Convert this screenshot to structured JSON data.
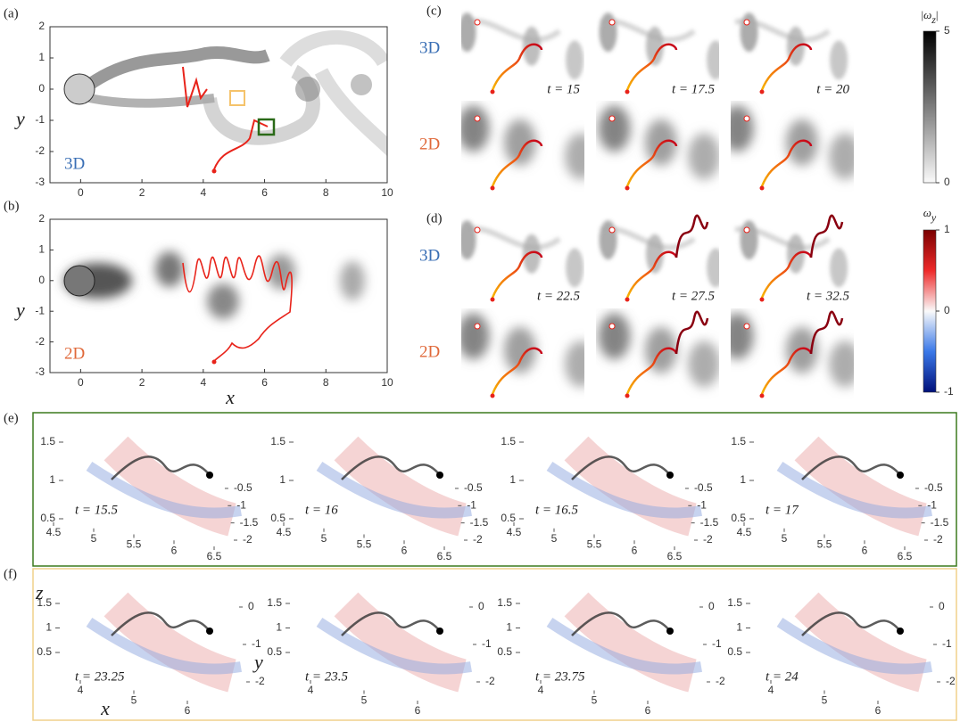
{
  "panel_a": {
    "label": "(a)",
    "tag": "3D",
    "ylabel": "y",
    "xticks": [
      0,
      2,
      4,
      6,
      8,
      10
    ],
    "yticks": [
      2,
      1,
      0,
      -1,
      -2,
      -3
    ]
  },
  "panel_b": {
    "label": "(b)",
    "tag": "2D",
    "ylabel": "y",
    "xlabel": "x",
    "xticks": [
      0,
      2,
      4,
      6,
      8,
      10
    ],
    "yticks": [
      2,
      1,
      0,
      -1,
      -2,
      -3
    ]
  },
  "panel_c": {
    "label": "(c)",
    "rows": [
      "3D",
      "2D"
    ],
    "times": [
      "t = 15",
      "t = 17.5",
      "t = 20"
    ]
  },
  "panel_d": {
    "label": "(d)",
    "rows": [
      "3D",
      "2D"
    ],
    "times": [
      "t = 22.5",
      "t = 27.5",
      "t = 32.5"
    ]
  },
  "colorbar_z": {
    "left": "|",
    "symbol": "ω",
    "sub": "z",
    "right": "|",
    "ticks": [
      5,
      0
    ]
  },
  "colorbar_y": {
    "symbol": "ω",
    "sub": "y",
    "ticks": [
      1,
      0,
      -1
    ]
  },
  "panel_e": {
    "label": "(e)",
    "times": [
      "t = 15.5",
      "t = 16",
      "t = 16.5",
      "t = 17"
    ],
    "zticks": [
      0.5,
      1,
      1.5
    ],
    "xticks": [
      4.5,
      5,
      5.5,
      6,
      6.5
    ],
    "yticks": [
      -2,
      -1.5,
      -1,
      -0.5
    ]
  },
  "panel_f": {
    "label": "(f)",
    "times": [
      "t = 23.25",
      "t = 23.5",
      "t = 23.75",
      "t = 24"
    ],
    "zticks": [
      0.5,
      1,
      1.5
    ],
    "xticks": [
      4,
      5,
      6
    ],
    "yticks": [
      -2,
      -1,
      0
    ],
    "zlabel": "z",
    "xlabel": "x",
    "ylabel": "y"
  }
}
